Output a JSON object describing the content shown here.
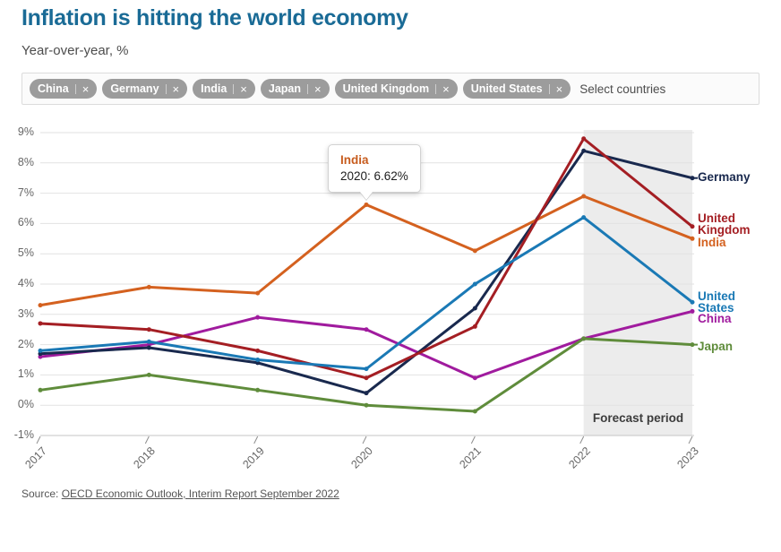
{
  "header": {
    "title": "Inflation is hitting the world economy",
    "subtitle": "Year-over-year, %"
  },
  "filter": {
    "selected_countries": [
      "China",
      "Germany",
      "India",
      "Japan",
      "United Kingdom",
      "United States"
    ],
    "remove_icon": "×",
    "placeholder": "Select countries"
  },
  "tooltip": {
    "country": "India",
    "value": "2020: 6.62%"
  },
  "chart_data": {
    "type": "line",
    "x": [
      2017,
      2018,
      2019,
      2020,
      2021,
      2022,
      2023
    ],
    "x_tick_labels": [
      "2017",
      "2018",
      "2019",
      "2020",
      "2021",
      "2022",
      "2023"
    ],
    "y_tick_labels": [
      "9%",
      "8%",
      "7%",
      "6%",
      "5%",
      "4%",
      "3%",
      "2%",
      "1%",
      "0%",
      "-1%"
    ],
    "ylim": [
      -1,
      9
    ],
    "grid": "horizontal",
    "legend_position": "right-edge-labels",
    "forecast_period": {
      "label": "Forecast period",
      "from_x": 2022,
      "to_x": 2023
    },
    "series": [
      {
        "name": "China",
        "color": "#a01b9e",
        "values": [
          1.6,
          2.0,
          2.9,
          2.5,
          0.9,
          2.2,
          3.1
        ],
        "label_lines": [
          "China"
        ]
      },
      {
        "name": "Germany",
        "color": "#19294e",
        "values": [
          1.7,
          1.9,
          1.4,
          0.4,
          3.2,
          8.4,
          7.5
        ],
        "label_lines": [
          "Germany"
        ]
      },
      {
        "name": "India",
        "color": "#d4611f",
        "values": [
          3.3,
          3.9,
          3.7,
          6.62,
          5.1,
          6.9,
          5.5
        ],
        "label_lines": [
          "India"
        ]
      },
      {
        "name": "Japan",
        "color": "#5f8c3b",
        "values": [
          0.5,
          1.0,
          0.5,
          0.0,
          -0.2,
          2.2,
          2.0
        ],
        "label_lines": [
          "Japan"
        ]
      },
      {
        "name": "United Kingdom",
        "color": "#a41e23",
        "values": [
          2.7,
          2.5,
          1.8,
          0.9,
          2.6,
          8.8,
          5.9
        ],
        "label_lines": [
          "United",
          "Kingdom"
        ]
      },
      {
        "name": "United States",
        "color": "#1a79b5",
        "values": [
          1.8,
          2.1,
          1.5,
          1.2,
          4.0,
          6.2,
          3.4
        ],
        "label_lines": [
          "United",
          "States"
        ]
      }
    ]
  },
  "source": {
    "prefix": "Source: ",
    "link_text": "OECD Economic Outlook, Interim Report September 2022"
  }
}
